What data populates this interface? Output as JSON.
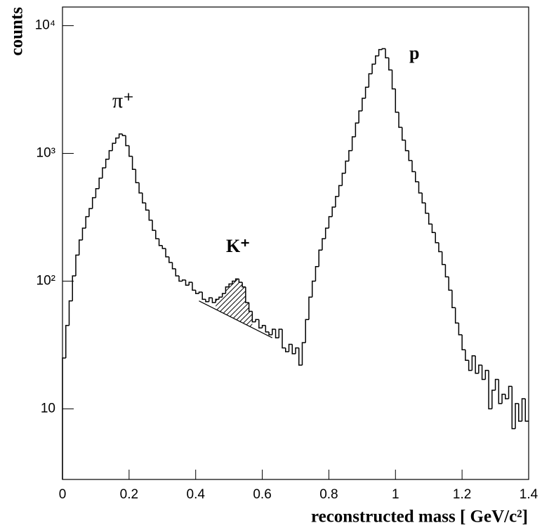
{
  "chart_data": {
    "type": "histogram",
    "xlabel": "reconstructed mass  [ GeV/c²]",
    "ylabel": "counts",
    "yscale": "log",
    "color": "#000000",
    "bins": [
      0,
      0.01,
      0.02,
      0.03,
      0.04,
      0.05,
      0.06,
      0.07,
      0.08,
      0.09,
      0.1,
      0.11,
      0.12,
      0.13,
      0.14,
      0.15,
      0.16,
      0.17,
      0.18,
      0.19,
      0.2,
      0.21,
      0.22,
      0.23,
      0.24,
      0.25,
      0.26,
      0.27,
      0.28,
      0.29,
      0.3,
      0.31,
      0.32,
      0.33,
      0.34,
      0.35,
      0.36,
      0.37,
      0.38,
      0.39,
      0.4,
      0.41,
      0.42,
      0.43,
      0.44,
      0.45,
      0.46,
      0.47,
      0.48,
      0.49,
      0.5,
      0.51,
      0.52,
      0.53,
      0.54,
      0.55,
      0.56,
      0.57,
      0.58,
      0.59,
      0.6,
      0.61,
      0.62,
      0.63,
      0.64,
      0.65,
      0.66,
      0.67,
      0.68,
      0.69,
      0.7,
      0.71,
      0.72,
      0.73,
      0.74,
      0.75,
      0.76,
      0.77,
      0.78,
      0.79,
      0.8,
      0.81,
      0.82,
      0.83,
      0.84,
      0.85,
      0.86,
      0.87,
      0.88,
      0.89,
      0.9,
      0.91,
      0.92,
      0.93,
      0.94,
      0.95,
      0.96,
      0.97,
      0.98,
      0.99,
      1,
      1.01,
      1.02,
      1.03,
      1.04,
      1.05,
      1.06,
      1.07,
      1.08,
      1.09,
      1.1,
      1.11,
      1.12,
      1.13,
      1.14,
      1.15,
      1.16,
      1.17,
      1.18,
      1.19,
      1.2,
      1.21,
      1.22,
      1.23,
      1.24,
      1.25,
      1.26,
      1.27,
      1.28,
      1.29,
      1.3,
      1.31,
      1.32,
      1.33,
      1.34,
      1.35,
      1.36,
      1.37,
      1.38,
      1.39,
      1.4
    ],
    "values": [
      25,
      45,
      70,
      110,
      160,
      210,
      260,
      320,
      370,
      450,
      530,
      640,
      770,
      900,
      1050,
      1200,
      1320,
      1420,
      1380,
      1150,
      950,
      750,
      590,
      490,
      410,
      360,
      300,
      250,
      215,
      190,
      180,
      155,
      140,
      125,
      110,
      100,
      102,
      93,
      98,
      85,
      80,
      82,
      72,
      69,
      74,
      68,
      72,
      75,
      80,
      90,
      95,
      100,
      104,
      98,
      90,
      68,
      58,
      48,
      50,
      43,
      45,
      40,
      38,
      42,
      36,
      42,
      30,
      28,
      32,
      27,
      30,
      22,
      33,
      50,
      75,
      100,
      130,
      175,
      215,
      260,
      320,
      380,
      460,
      560,
      700,
      870,
      1050,
      1350,
      1730,
      2150,
      2700,
      3300,
      4200,
      5000,
      5800,
      6500,
      6600,
      5600,
      4500,
      3200,
      2100,
      1600,
      1270,
      1050,
      880,
      720,
      600,
      490,
      410,
      340,
      280,
      240,
      200,
      170,
      135,
      108,
      85,
      62,
      47,
      38,
      29,
      24,
      20,
      26,
      19,
      22,
      17,
      20,
      10,
      14,
      17,
      11,
      13,
      12,
      15,
      7,
      11,
      8,
      12,
      8
    ],
    "background": {
      "x": [
        0.41,
        0.63
      ],
      "values": [
        70,
        36
      ]
    },
    "shaded_range": [
      0.46,
      0.57
    ],
    "annotations": [
      "π⁺",
      "K⁺",
      "p"
    ],
    "xlim": [
      0,
      1.4
    ],
    "ylim": [
      2.8,
      14000
    ],
    "xticks": [
      0,
      0.2,
      0.4,
      0.6,
      0.8,
      1,
      1.2,
      1.4
    ],
    "yticks": [
      10,
      {
        "value": 100,
        "label": "10²"
      },
      {
        "value": 1000,
        "label": "10³"
      },
      {
        "value": 10000,
        "label": "10⁴"
      }
    ]
  }
}
